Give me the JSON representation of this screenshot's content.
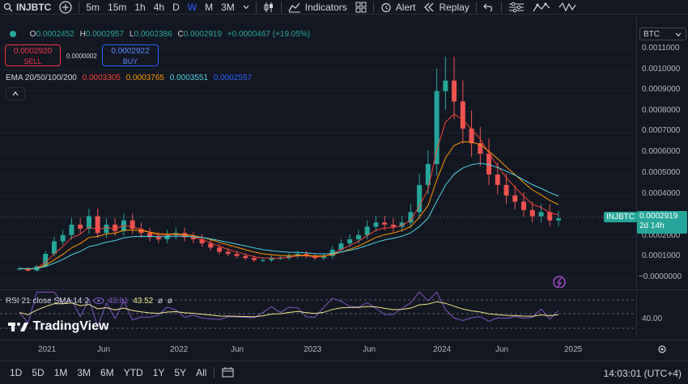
{
  "toolbar": {
    "symbol": "INJBTC",
    "intervals": [
      "5m",
      "15m",
      "1h",
      "4h",
      "D",
      "W",
      "M",
      "3M"
    ],
    "active_interval": "W",
    "indicators_label": "Indicators",
    "alert_label": "Alert",
    "replay_label": "Replay"
  },
  "legend": {
    "ohlc": {
      "o_label": "O",
      "o_value": "0.0002452",
      "h_label": "H",
      "h_value": "0.0002957",
      "l_label": "L",
      "l_value": "0.0002386",
      "c_label": "C",
      "c_value": "0.0002919",
      "change": "+0.0000467 (+19.05%)"
    },
    "sell_price": "0.0002920",
    "sell_label": "SELL",
    "spread": "0.0000002",
    "buy_price": "0.0002922",
    "buy_label": "BUY",
    "ema_title": "EMA 20/50/100/200",
    "ema_values": [
      "0.0003305",
      "0.0003765",
      "0.0003551",
      "0.0002557"
    ]
  },
  "price_axis": {
    "currency": "BTC",
    "ticks": [
      "0.0011000",
      "0.0010000",
      "0.0009000",
      "0.0008000",
      "0.0007000",
      "0.0006000",
      "0.0005000",
      "0.0004000",
      "0.0003000",
      "0.0002000",
      "0.0001000",
      "−0.0000000"
    ],
    "symbol_badge": "INJBTC",
    "last_price": "0.0002919",
    "countdown": "2d 14h"
  },
  "rsi": {
    "title": "RSI 21 close SMA 14 2",
    "value_1": "43.81",
    "value_2": "43.52",
    "value_3": "ø",
    "value_4": "ø",
    "axis_label": "40.00"
  },
  "watermark": "TradingView",
  "time_axis": [
    "2021",
    "Jun",
    "2022",
    "Jun",
    "2023",
    "Jun",
    "2024",
    "Jun",
    "2025"
  ],
  "bottom": {
    "ranges": [
      "1D",
      "5D",
      "1M",
      "3M",
      "6M",
      "YTD",
      "1Y",
      "5Y",
      "All"
    ],
    "clock": "14:03:01 (UTC+4)"
  },
  "colors": {
    "up": "#26a69a",
    "down": "#ef5350",
    "ema20": "#f44336",
    "ema50": "#ff9800",
    "ema100": "#4dd0e1",
    "ema200": "#2962ff",
    "rsi": "#7e57c2",
    "rsi_sma": "#f0e68c"
  },
  "chart_data": {
    "type": "candlestick",
    "timeframe": "W",
    "series_close_approx": [
      5e-05,
      4e-05,
      6e-05,
      0.00012,
      0.00018,
      0.00021,
      0.00026,
      0.00024,
      0.0003,
      0.00022,
      0.00026,
      0.00023,
      0.00028,
      0.00024,
      0.00022,
      0.0002,
      0.00019,
      0.00021,
      0.00022,
      0.0002,
      0.00019,
      0.00017,
      0.00015,
      0.00013,
      0.00012,
      0.00011,
      0.0001,
      9e-05,
      9e-05,
      0.0001,
      0.0001,
      0.00011,
      0.00012,
      0.00011,
      0.0001,
      0.00011,
      0.00014,
      0.00017,
      0.00019,
      0.00021,
      0.00025,
      0.00027,
      0.00026,
      0.00025,
      0.00027,
      0.00032,
      0.00045,
      0.00055,
      0.0009,
      0.00095,
      0.00085,
      0.00072,
      0.00065,
      0.0006,
      0.0005,
      0.00045,
      0.0004,
      0.00037,
      0.00033,
      0.0003,
      0.00032,
      0.00028,
      0.00029
    ]
  }
}
